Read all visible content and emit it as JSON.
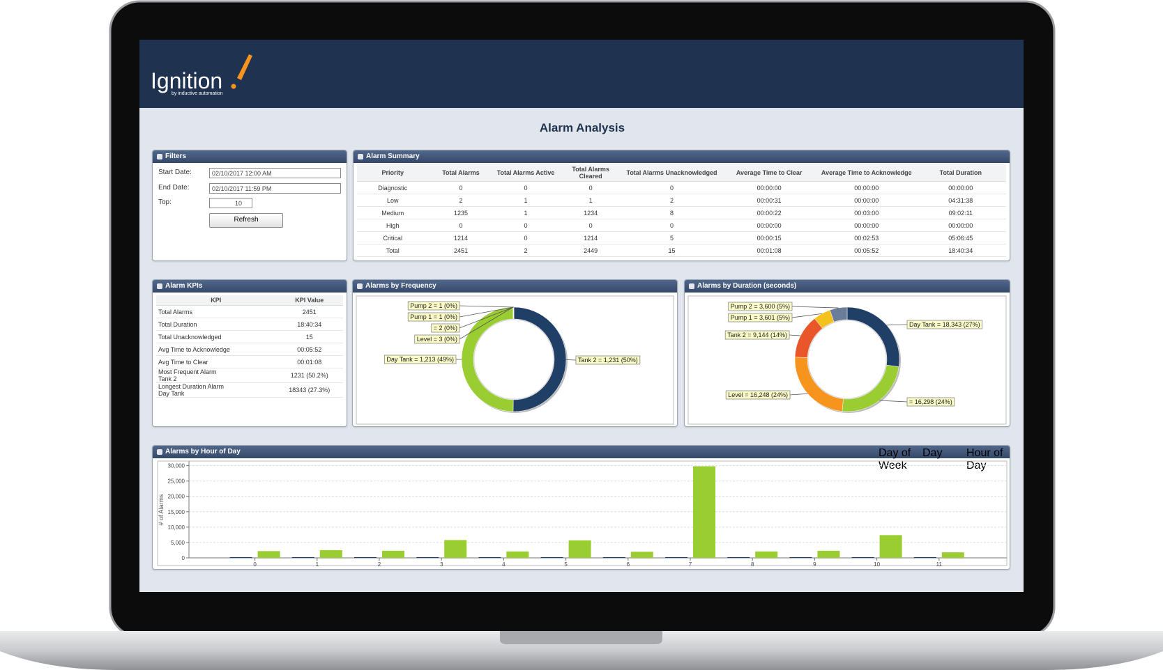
{
  "header": {
    "logo": "Ignition",
    "logo_tagline": "by inductive automation",
    "title": "Alarm Analysis"
  },
  "filters": {
    "title": "Filters",
    "start_label": "Start Date:",
    "start_value": "02/10/2017 12:00 AM",
    "end_label": "End Date:",
    "end_value": "02/10/2017 11:59 PM",
    "top_label": "Top:",
    "top_value": 10,
    "refresh": "Refresh"
  },
  "summary": {
    "title": "Alarm Summary",
    "columns": [
      "Priority",
      "Total Alarms",
      "Total Alarms Active",
      "Total Alarms Cleared",
      "Total Alarms Unacknowledged",
      "Average Time to Clear",
      "Average Time to Acknowledge",
      "Total Duration"
    ],
    "rows": [
      [
        "Diagnostic",
        0,
        0,
        0,
        0,
        "00:00:00",
        "00:00:00",
        "00:00:00"
      ],
      [
        "Low",
        2,
        1,
        1,
        2,
        "00:00:31",
        "00:00:00",
        "04:31:38"
      ],
      [
        "Medium",
        1235,
        1,
        1234,
        8,
        "00:00:22",
        "00:03:00",
        "09:02:11"
      ],
      [
        "High",
        0,
        0,
        0,
        0,
        "00:00:00",
        "00:00:00",
        "00:00:00"
      ],
      [
        "Critical",
        1214,
        0,
        1214,
        5,
        "00:00:15",
        "00:02:53",
        "05:06:45"
      ],
      [
        "Total",
        2451,
        2,
        2449,
        15,
        "00:01:08",
        "00:05:52",
        "18:40:34"
      ]
    ]
  },
  "kpis": {
    "title": "Alarm KPIs",
    "columns": [
      "KPI",
      "KPI Value"
    ],
    "rows": [
      [
        "Total Alarms",
        2451
      ],
      [
        "Total Duration",
        "18:40:34"
      ],
      [
        "Total Unacknowledged",
        15
      ],
      [
        "Avg Time to Acknowledge",
        "00:05:52"
      ],
      [
        "Avg Time to Clear",
        "00:01:08"
      ],
      [
        "Most Frequent Alarm\nTank 2",
        "1231 (50.2%)"
      ],
      [
        "Longest Duration Alarm\nDay Tank",
        "18343 (27.3%)"
      ]
    ]
  },
  "hour_tabs": {
    "tabs": [
      "Day of Week",
      "Day",
      "Hour of Day"
    ],
    "selected": 2
  },
  "chart_data": [
    {
      "type": "pie",
      "donut": true,
      "title": "Alarms by Frequency",
      "values": [
        1231,
        1213,
        3,
        2,
        1,
        1
      ],
      "value_labels": [
        "Tank 2 = 1,231 (50%)",
        "Day Tank = 1,213 (49%)",
        "Level = 3 (0%)",
        "= 2 (0%)",
        "Pump 1 = 1 (0%)",
        "Pump 2 = 1 (0%)"
      ],
      "colors": [
        "#1f3f66",
        "#9acd32",
        "#f7941d",
        "#e8562a",
        "#f4c21b",
        "#5b6f8f"
      ]
    },
    {
      "type": "pie",
      "donut": true,
      "title": "Alarms by Duration (seconds)",
      "values": [
        18343,
        16298,
        16248,
        9144,
        3601,
        3600
      ],
      "value_labels": [
        "Day Tank = 18,343 (27%)",
        "= 16,298 (24%)",
        "Level = 16,248 (24%)",
        "Tank 2 = 9,144 (14%)",
        "Pump 1 = 3,601 (5%)",
        "Pump 2 = 3,600 (5%)"
      ],
      "colors": [
        "#1f3f66",
        "#9acd32",
        "#f7941d",
        "#e8562a",
        "#f4c21b",
        "#6b7d99"
      ]
    },
    {
      "type": "bar",
      "title": "Alarms by Hour of Day",
      "y_label": "# of Alarms",
      "categories": [
        0,
        1,
        2,
        3,
        4,
        5,
        6,
        7,
        8,
        9,
        10,
        11
      ],
      "series": [
        {
          "color": "#1f3f66",
          "values": [
            250,
            250,
            250,
            250,
            250,
            250,
            250,
            250,
            250,
            250,
            250,
            250
          ]
        },
        {
          "color": "#9acd32",
          "values": [
            2200,
            2500,
            2300,
            5800,
            2100,
            5700,
            2000,
            29800,
            2100,
            2300,
            7400,
            1800
          ]
        }
      ],
      "ylim": [
        0,
        31500
      ],
      "yticks": [
        0,
        {
          "value": 5000,
          "label": "5,000"
        },
        {
          "value": 10000,
          "label": "10,000"
        },
        {
          "value": 15000,
          "label": "15,000"
        },
        {
          "value": 20000,
          "label": "20,000"
        },
        {
          "value": 25000,
          "label": "25,000"
        },
        {
          "value": 30000,
          "label": "30,000"
        }
      ],
      "grid": true
    }
  ]
}
